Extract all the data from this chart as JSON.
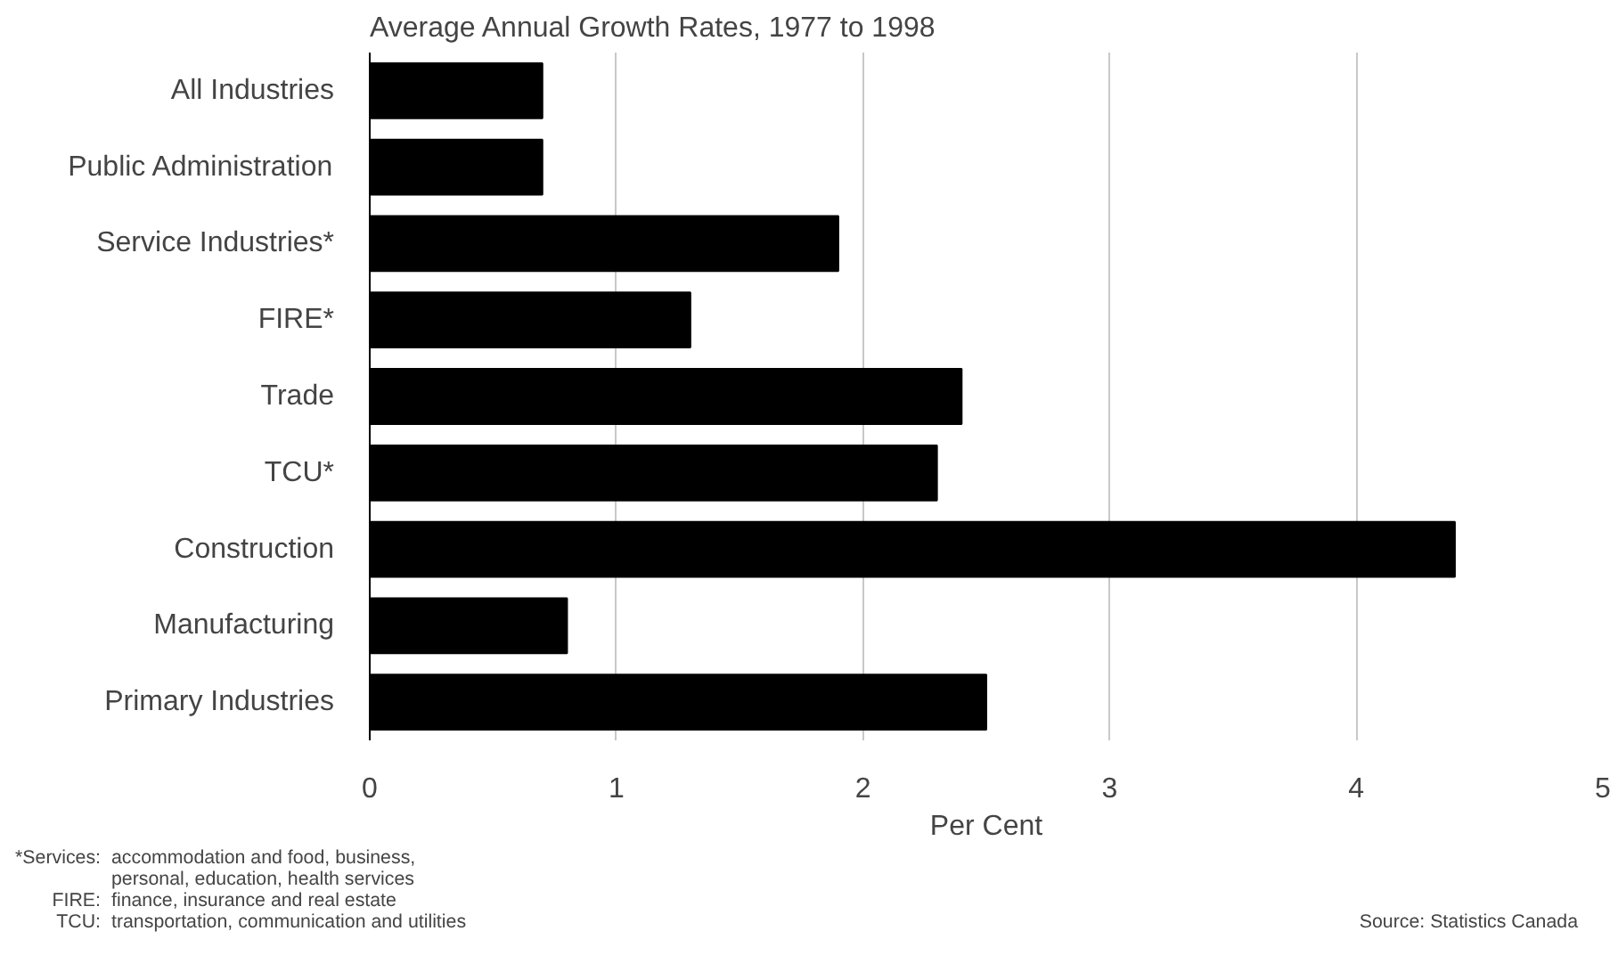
{
  "chart_data": {
    "type": "bar",
    "orientation": "horizontal",
    "title": "Average Annual Growth Rates, 1977 to 1998",
    "xlabel": "Per Cent",
    "categories": [
      "All Industries",
      "Public Administration",
      "Service Industries*",
      "FIRE*",
      "Trade",
      "TCU*",
      "Construction",
      "Manufacturing",
      "Primary Industries"
    ],
    "values": [
      0.7,
      0.7,
      1.9,
      1.3,
      2.4,
      2.3,
      4.4,
      0.8,
      2.5
    ],
    "color": "#000000",
    "xlim": [
      0,
      5
    ],
    "xticks": [
      0,
      1,
      2,
      3,
      4,
      5
    ],
    "grid": "x",
    "annotations": [
      "*Services: accommodation and food, business,",
      "personal, education, health services",
      "FIRE: finance, insurance and real estate",
      "TCU: transportation, communication and utilities",
      "Source: Statistics Canada"
    ]
  }
}
